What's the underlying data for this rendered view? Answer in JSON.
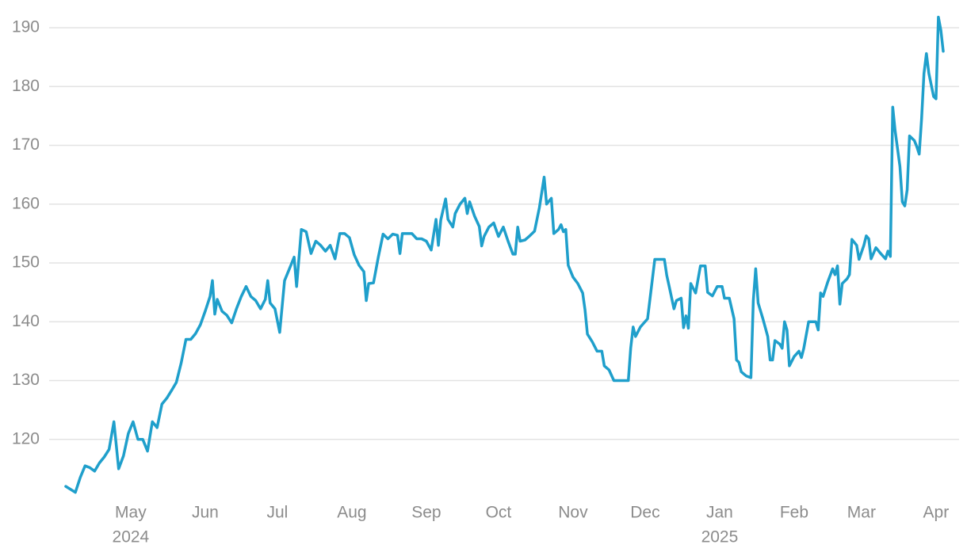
{
  "chart_data": {
    "type": "line",
    "x": [
      "2024-04-04",
      "2024-04-06",
      "2024-04-08",
      "2024-04-10",
      "2024-04-12",
      "2024-04-14",
      "2024-04-16",
      "2024-04-18",
      "2024-04-20",
      "2024-04-22",
      "2024-04-24",
      "2024-04-26",
      "2024-04-28",
      "2024-04-30",
      "2024-05-02",
      "2024-05-04",
      "2024-05-06",
      "2024-05-08",
      "2024-05-10",
      "2024-05-12",
      "2024-05-14",
      "2024-05-16",
      "2024-05-18",
      "2024-05-20",
      "2024-05-22",
      "2024-05-24",
      "2024-05-26",
      "2024-05-28",
      "2024-05-30",
      "2024-06-01",
      "2024-06-03",
      "2024-06-04",
      "2024-06-05",
      "2024-06-06",
      "2024-06-08",
      "2024-06-10",
      "2024-06-12",
      "2024-06-14",
      "2024-06-16",
      "2024-06-18",
      "2024-06-20",
      "2024-06-22",
      "2024-06-24",
      "2024-06-26",
      "2024-06-27",
      "2024-06-28",
      "2024-06-30",
      "2024-07-02",
      "2024-07-04",
      "2024-07-06",
      "2024-07-08",
      "2024-07-09",
      "2024-07-11",
      "2024-07-13",
      "2024-07-15",
      "2024-07-17",
      "2024-07-19",
      "2024-07-21",
      "2024-07-23",
      "2024-07-25",
      "2024-07-27",
      "2024-07-29",
      "2024-07-31",
      "2024-08-02",
      "2024-08-04",
      "2024-08-06",
      "2024-08-07",
      "2024-08-08",
      "2024-08-10",
      "2024-08-12",
      "2024-08-14",
      "2024-08-16",
      "2024-08-18",
      "2024-08-20",
      "2024-08-21",
      "2024-08-22",
      "2024-08-24",
      "2024-08-26",
      "2024-08-28",
      "2024-08-30",
      "2024-09-01",
      "2024-09-03",
      "2024-09-05",
      "2024-09-06",
      "2024-09-07",
      "2024-09-09",
      "2024-09-10",
      "2024-09-12",
      "2024-09-13",
      "2024-09-15",
      "2024-09-17",
      "2024-09-18",
      "2024-09-19",
      "2024-09-21",
      "2024-09-23",
      "2024-09-24",
      "2024-09-25",
      "2024-09-27",
      "2024-09-29",
      "2024-10-01",
      "2024-10-03",
      "2024-10-05",
      "2024-10-07",
      "2024-10-08",
      "2024-10-09",
      "2024-10-10",
      "2024-10-12",
      "2024-10-14",
      "2024-10-16",
      "2024-10-18",
      "2024-10-20",
      "2024-10-21",
      "2024-10-23",
      "2024-10-24",
      "2024-10-26",
      "2024-10-27",
      "2024-10-28",
      "2024-10-29",
      "2024-10-30",
      "2024-11-01",
      "2024-11-03",
      "2024-11-05",
      "2024-11-06",
      "2024-11-07",
      "2024-11-09",
      "2024-11-11",
      "2024-11-13",
      "2024-11-14",
      "2024-11-16",
      "2024-11-18",
      "2024-11-20",
      "2024-11-22",
      "2024-11-24",
      "2024-11-25",
      "2024-11-26",
      "2024-11-27",
      "2024-11-29",
      "2024-12-02",
      "2024-12-05",
      "2024-12-07",
      "2024-12-09",
      "2024-12-10",
      "2024-12-11",
      "2024-12-13",
      "2024-12-14",
      "2024-12-16",
      "2024-12-17",
      "2024-12-18",
      "2024-12-19",
      "2024-12-20",
      "2024-12-22",
      "2024-12-24",
      "2024-12-26",
      "2024-12-27",
      "2024-12-29",
      "2024-12-31",
      "2025-01-02",
      "2025-01-03",
      "2025-01-05",
      "2025-01-07",
      "2025-01-08",
      "2025-01-09",
      "2025-01-10",
      "2025-01-12",
      "2025-01-14",
      "2025-01-15",
      "2025-01-16",
      "2025-01-17",
      "2025-01-19",
      "2025-01-21",
      "2025-01-22",
      "2025-01-23",
      "2025-01-24",
      "2025-01-26",
      "2025-01-27",
      "2025-01-28",
      "2025-01-29",
      "2025-01-30",
      "2025-02-01",
      "2025-02-03",
      "2025-02-04",
      "2025-02-05",
      "2025-02-07",
      "2025-02-09",
      "2025-02-10",
      "2025-02-11",
      "2025-02-12",
      "2025-02-13",
      "2025-02-15",
      "2025-02-17",
      "2025-02-18",
      "2025-02-19",
      "2025-02-20",
      "2025-02-21",
      "2025-02-23",
      "2025-02-24",
      "2025-02-25",
      "2025-02-27",
      "2025-02-28",
      "2025-03-02",
      "2025-03-03",
      "2025-03-04",
      "2025-03-05",
      "2025-03-07",
      "2025-03-09",
      "2025-03-11",
      "2025-03-12",
      "2025-03-13",
      "2025-03-14",
      "2025-03-15",
      "2025-03-17",
      "2025-03-18",
      "2025-03-19",
      "2025-03-20",
      "2025-03-21",
      "2025-03-23",
      "2025-03-24",
      "2025-03-25",
      "2025-03-26",
      "2025-03-27",
      "2025-03-28",
      "2025-03-29",
      "2025-03-31",
      "2025-04-01",
      "2025-04-02",
      "2025-04-03",
      "2025-04-04"
    ],
    "values": [
      112,
      111.5,
      111,
      113.5,
      115.5,
      115.2,
      114.6,
      116,
      117,
      118.3,
      123,
      115,
      117.2,
      121,
      123,
      120,
      120,
      118,
      123,
      122,
      126,
      127,
      128.3,
      129.7,
      133,
      137,
      137,
      138,
      139.5,
      141.8,
      144.3,
      147,
      141.3,
      143.8,
      141.8,
      141.1,
      139.8,
      142.2,
      144.3,
      146,
      144.3,
      143.6,
      142.2,
      143.8,
      147,
      143.2,
      142.2,
      138.2,
      147,
      149,
      151,
      146,
      155.7,
      155.3,
      151.6,
      153.7,
      153,
      152,
      153,
      150.7,
      155,
      155,
      154.3,
      151.4,
      149.6,
      148.5,
      143.6,
      146.5,
      146.6,
      151,
      154.9,
      154.1,
      154.9,
      154.7,
      151.6,
      155,
      155,
      155,
      154.1,
      154.1,
      153.7,
      152.2,
      157.4,
      153,
      157.3,
      160.9,
      157.4,
      156.1,
      158.4,
      160,
      161,
      158.4,
      160.4,
      158,
      156.2,
      152.9,
      154.5,
      156.1,
      156.8,
      154.5,
      156.1,
      153.7,
      151.5,
      151.5,
      156.1,
      153.7,
      153.9,
      154.6,
      155.4,
      159.4,
      164.6,
      160,
      161,
      155,
      155.7,
      156.5,
      155.3,
      155.7,
      149.6,
      147.6,
      146.5,
      144.9,
      142,
      137.9,
      136.6,
      135,
      135,
      132.5,
      131.8,
      130,
      130,
      130,
      130,
      135.5,
      139.1,
      137.5,
      139.1,
      140.5,
      150.6,
      150.6,
      150.6,
      147.9,
      146,
      142.2,
      143.6,
      144,
      139,
      141,
      138.9,
      146.5,
      144.9,
      149.5,
      149.5,
      145,
      144.4,
      146,
      146,
      144,
      144,
      140.5,
      133.5,
      133.1,
      131.5,
      130.8,
      130.5,
      143.6,
      149,
      143.2,
      140.5,
      137.5,
      133.5,
      133.5,
      136.8,
      136.2,
      135.5,
      140,
      138.6,
      132.5,
      134.1,
      135,
      133.9,
      135.5,
      140,
      140,
      140,
      138.6,
      144.9,
      144.3,
      146.8,
      149,
      148,
      149.5,
      143,
      146.5,
      147.3,
      148,
      154,
      153,
      150.6,
      153,
      154.6,
      154.1,
      150.7,
      152.6,
      151.6,
      150.7,
      152,
      151.1,
      176.5,
      172.5,
      166.4,
      160.4,
      159.7,
      162.4,
      171.6,
      170.8,
      169.8,
      168.5,
      174.5,
      182.2,
      185.6,
      182.3,
      178.3,
      177.9,
      191.8,
      189.6,
      186
    ],
    "color": "#1f9fcb",
    "xlim": [
      "2024-04-04",
      "2025-04-04"
    ],
    "xticks": [
      {
        "value": "2024-05-01",
        "label": "May"
      },
      {
        "value": "2024-06-01",
        "label": "Jun"
      },
      {
        "value": "2024-07-01",
        "label": "Jul"
      },
      {
        "value": "2024-08-01",
        "label": "Aug"
      },
      {
        "value": "2024-09-01",
        "label": "Sep"
      },
      {
        "value": "2024-10-01",
        "label": "Oct"
      },
      {
        "value": "2024-11-01",
        "label": "Nov"
      },
      {
        "value": "2024-12-01",
        "label": "Dec"
      },
      {
        "value": "2025-01-01",
        "label": "Jan"
      },
      {
        "value": "2025-02-01",
        "label": "Feb"
      },
      {
        "value": "2025-03-01",
        "label": "Mar"
      },
      {
        "value": "2025-04-01",
        "label": "Apr"
      }
    ],
    "xtick_years": [
      {
        "value": "2024-05-01",
        "label": "2024"
      },
      {
        "value": "2025-01-01",
        "label": "2025"
      }
    ],
    "ylim": [
      110,
      193
    ],
    "yticks": [
      120,
      130,
      140,
      150,
      160,
      170,
      180,
      190
    ],
    "grid": true
  }
}
